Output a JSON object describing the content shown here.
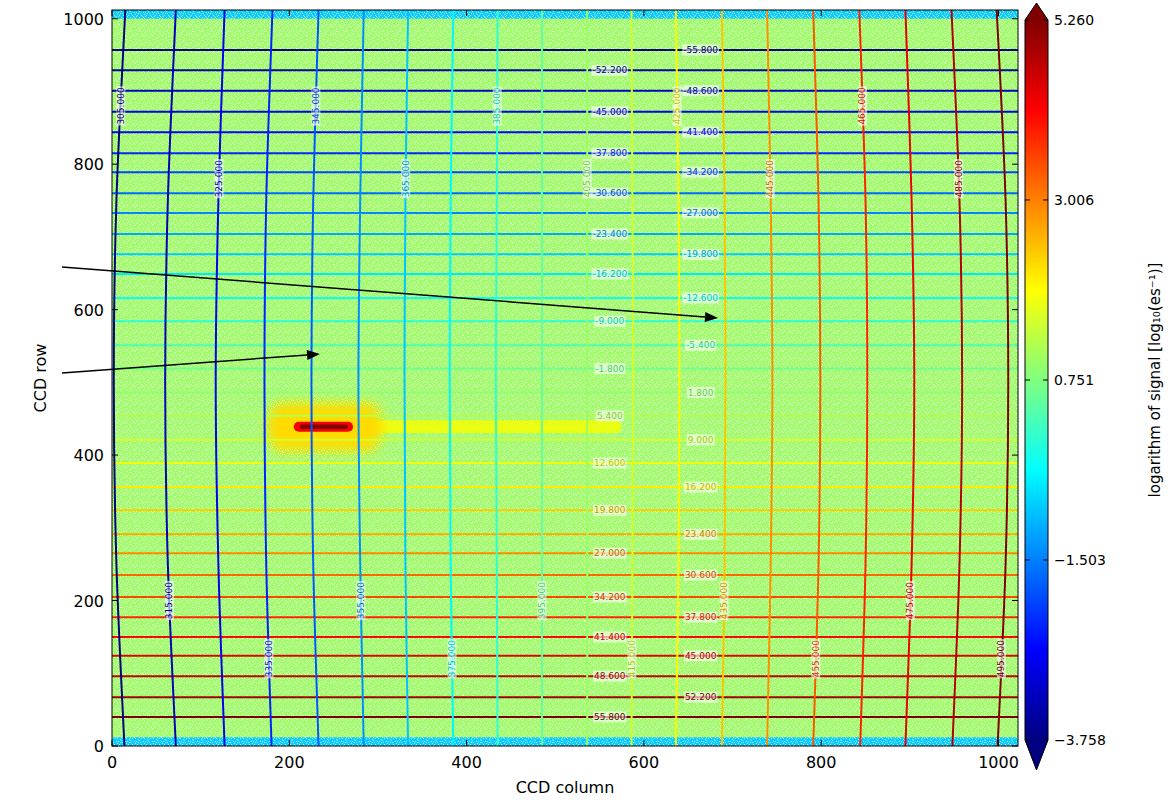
{
  "chart_data": {
    "type": "heatmap",
    "x_label": "CCD column",
    "y_label": "CCD row",
    "xlim": [
      0,
      1022
    ],
    "ylim": [
      0,
      1012
    ],
    "xticks": [
      0,
      200,
      400,
      600,
      800,
      1000
    ],
    "yticks": [
      0,
      200,
      400,
      600,
      800,
      1000
    ],
    "cells": [
      {
        "x": [
          0,
          1022
        ],
        "y": [
          0,
          1012
        ],
        "value": 1.0
      },
      {
        "x": [
          0,
          1022
        ],
        "y": [
          0,
          12
        ],
        "value": -0.8
      },
      {
        "x": [
          0,
          1022
        ],
        "y": [
          1000,
          1012
        ],
        "value": -0.8
      },
      {
        "x": [
          290,
          575
        ],
        "y": [
          430,
          448
        ],
        "value": 1.7
      },
      {
        "x": [
          175,
          305
        ],
        "y": [
          405,
          472
        ],
        "value": 2.2
      },
      {
        "x": [
          205,
          272
        ],
        "y": [
          432,
          446
        ],
        "value": 4.2
      },
      {
        "x": [
          212,
          266
        ],
        "y": [
          436,
          442
        ],
        "value": 5.26
      }
    ],
    "colorbar": {
      "range": [
        -3.758,
        5.26
      ],
      "ticks": [
        {
          "value": -3.758,
          "label": "−3.758"
        },
        {
          "value": -1.503,
          "label": "−1.503"
        },
        {
          "value": 0.751,
          "label": "0.751"
        },
        {
          "value": 3.006,
          "label": "3.006"
        },
        {
          "value": 5.26,
          "label": "5.260"
        }
      ],
      "label": "logarithm of signal [log₁₀(es⁻¹)]"
    },
    "contour_sets": [
      {
        "contours": [
          {
            "level": -55.8,
            "label": "-55.800",
            "x": [
              0,
              1022
            ],
            "y": [
              957,
              957
            ]
          },
          {
            "level": -52.2,
            "label": "-52.200",
            "x": [
              0,
              1022
            ],
            "y": [
              929,
              929
            ]
          },
          {
            "level": -48.6,
            "label": "-48.600",
            "x": [
              0,
              1022
            ],
            "y": [
              901,
              901
            ]
          },
          {
            "level": -45.0,
            "label": "-45.000",
            "x": [
              0,
              1022
            ],
            "y": [
              872,
              872
            ]
          },
          {
            "level": -41.4,
            "label": "-41.400",
            "x": [
              0,
              1022
            ],
            "y": [
              844,
              844
            ]
          },
          {
            "level": -37.8,
            "label": "-37.800",
            "x": [
              0,
              1022
            ],
            "y": [
              815,
              815
            ]
          },
          {
            "level": -34.2,
            "label": "-34.200",
            "x": [
              0,
              1022
            ],
            "y": [
              789,
              789
            ]
          },
          {
            "level": -30.6,
            "label": "-30.600",
            "x": [
              0,
              1022
            ],
            "y": [
              760,
              760
            ]
          },
          {
            "level": -27.0,
            "label": "-27.000",
            "x": [
              0,
              1022
            ],
            "y": [
              733,
              733
            ]
          },
          {
            "level": -23.4,
            "label": "-23.400",
            "x": [
              0,
              1022
            ],
            "y": [
              704,
              704
            ]
          },
          {
            "level": -19.8,
            "label": "-19.800",
            "x": [
              0,
              1022
            ],
            "y": [
              676,
              676
            ]
          },
          {
            "level": -16.2,
            "label": "-16.200",
            "x": [
              0,
              1022
            ],
            "y": [
              649,
              649
            ]
          },
          {
            "level": -12.6,
            "label": "-12.600",
            "x": [
              0,
              1022
            ],
            "y": [
              616,
              616
            ]
          },
          {
            "level": -9.0,
            "label": "-9.000",
            "x": [
              0,
              1022
            ],
            "y": [
              584,
              584
            ]
          },
          {
            "level": -5.4,
            "label": "-5.400",
            "x": [
              0,
              1022
            ],
            "y": [
              551,
              551
            ]
          },
          {
            "level": -1.8,
            "label": "-1.800",
            "x": [
              0,
              1022
            ],
            "y": [
              519,
              519
            ]
          },
          {
            "level": 1.8,
            "label": "1.800",
            "x": [
              0,
              1022
            ],
            "y": [
              486,
              486
            ]
          },
          {
            "level": 5.4,
            "label": "5.400",
            "x": [
              0,
              1022
            ],
            "y": [
              454,
              454
            ]
          },
          {
            "level": 9.0,
            "label": "9.000",
            "x": [
              0,
              1022
            ],
            "y": [
              421,
              421
            ]
          },
          {
            "level": 12.6,
            "label": "12.600",
            "x": [
              0,
              1022
            ],
            "y": [
              389,
              389
            ]
          },
          {
            "level": 16.2,
            "label": "16.200",
            "x": [
              0,
              1022
            ],
            "y": [
              356,
              356
            ]
          },
          {
            "level": 19.8,
            "label": "19.800",
            "x": [
              0,
              1022
            ],
            "y": [
              324,
              324
            ]
          },
          {
            "level": 23.4,
            "label": "23.400",
            "x": [
              0,
              1022
            ],
            "y": [
              291,
              291
            ]
          },
          {
            "level": 27.0,
            "label": "27.000",
            "x": [
              0,
              1022
            ],
            "y": [
              265,
              265
            ]
          },
          {
            "level": 30.6,
            "label": "30.600",
            "x": [
              0,
              1022
            ],
            "y": [
              235,
              235
            ]
          },
          {
            "level": 34.2,
            "label": "34.200",
            "x": [
              0,
              1022
            ],
            "y": [
              205,
              205
            ]
          },
          {
            "level": 37.8,
            "label": "37.800",
            "x": [
              0,
              1022
            ],
            "y": [
              177,
              177
            ]
          },
          {
            "level": 41.4,
            "label": "41.400",
            "x": [
              0,
              1022
            ],
            "y": [
              150,
              150
            ]
          },
          {
            "level": 45.0,
            "label": "45.000",
            "x": [
              0,
              1022
            ],
            "y": [
              124,
              124
            ]
          },
          {
            "level": 48.6,
            "label": "48.600",
            "x": [
              0,
              1022
            ],
            "y": [
              96,
              96
            ]
          },
          {
            "level": 52.2,
            "label": "52.200",
            "x": [
              0,
              1022
            ],
            "y": [
              67,
              67
            ]
          },
          {
            "level": 55.8,
            "label": "55.800",
            "x": [
              0,
              1022
            ],
            "y": [
              40,
              40
            ]
          }
        ]
      },
      {
        "contours": [
          {
            "level": 305,
            "label": "305.000",
            "x": [
              14,
              5,
              2,
              5,
              15
            ],
            "y": [
              0,
              250,
              500,
              750,
              1012
            ]
          },
          {
            "level": 315,
            "label": "315.000",
            "x": [
              72,
              63,
              60,
              63,
              72
            ],
            "y": [
              0,
              250,
              500,
              750,
              1012
            ]
          },
          {
            "level": 325,
            "label": "325.000",
            "x": [
              127,
              120,
              117,
              120,
              127
            ],
            "y": [
              0,
              250,
              500,
              750,
              1012
            ]
          },
          {
            "level": 335,
            "label": "335.000",
            "x": [
              180,
              174,
              172,
              174,
              181
            ],
            "y": [
              0,
              250,
              500,
              750,
              1012
            ]
          },
          {
            "level": 345,
            "label": "345.000",
            "x": [
              233,
              227,
              225,
              227,
              233
            ],
            "y": [
              0,
              250,
              500,
              750,
              1012
            ]
          },
          {
            "level": 355,
            "label": "355.000",
            "x": [
              284,
              280,
              278,
              280,
              284
            ],
            "y": [
              0,
              250,
              500,
              750,
              1012
            ]
          },
          {
            "level": 365,
            "label": "365.000",
            "x": [
              334,
              331,
              330,
              331,
              334
            ],
            "y": [
              0,
              250,
              500,
              750,
              1012
            ]
          },
          {
            "level": 375,
            "label": "375.000",
            "x": [
              385,
              382,
              381,
              382,
              385
            ],
            "y": [
              0,
              250,
              500,
              750,
              1012
            ]
          },
          {
            "level": 385,
            "label": "385.000",
            "x": [
              435,
              434,
              433,
              434,
              435
            ],
            "y": [
              0,
              250,
              500,
              750,
              1012
            ]
          },
          {
            "level": 395,
            "label": "395.000",
            "x": [
              485,
              485,
              485,
              485,
              485
            ],
            "y": [
              0,
              250,
              500,
              750,
              1012
            ]
          },
          {
            "level": 405,
            "label": "405.000",
            "x": [
              536,
              536,
              536,
              536,
              536
            ],
            "y": [
              0,
              250,
              500,
              750,
              1012
            ]
          },
          {
            "level": 415,
            "label": "415.000",
            "x": [
              586,
              587,
              588,
              587,
              586
            ],
            "y": [
              0,
              250,
              500,
              750,
              1012
            ]
          },
          {
            "level": 425,
            "label": "425.000",
            "x": [
              636,
              639,
              640,
              639,
              636
            ],
            "y": [
              0,
              250,
              500,
              750,
              1012
            ]
          },
          {
            "level": 435,
            "label": "435.000",
            "x": [
              688,
              691,
              692,
              691,
              688
            ],
            "y": [
              0,
              250,
              500,
              750,
              1012
            ]
          },
          {
            "level": 445,
            "label": "445.000",
            "x": [
              739,
              743,
              745,
              743,
              739
            ],
            "y": [
              0,
              250,
              500,
              750,
              1012
            ]
          },
          {
            "level": 455,
            "label": "455.000",
            "x": [
              791,
              797,
              799,
              797,
              791
            ],
            "y": [
              0,
              250,
              500,
              750,
              1012
            ]
          },
          {
            "level": 465,
            "label": "465.000",
            "x": [
              844,
              850,
              852,
              850,
              843
            ],
            "y": [
              0,
              250,
              500,
              750,
              1012
            ]
          },
          {
            "level": 475,
            "label": "475.000",
            "x": [
              895,
              902,
              905,
              902,
              895
            ],
            "y": [
              0,
              250,
              500,
              750,
              1012
            ]
          },
          {
            "level": 485,
            "label": "485.000",
            "x": [
              948,
              956,
              959,
              956,
              947
            ],
            "y": [
              0,
              250,
              500,
              750,
              1012
            ]
          },
          {
            "level": 495,
            "label": "495.000",
            "x": [
              999,
              1008,
              1011,
              1008,
              998
            ],
            "y": [
              0,
              250,
              500,
              750,
              1012
            ]
          }
        ]
      }
    ]
  }
}
